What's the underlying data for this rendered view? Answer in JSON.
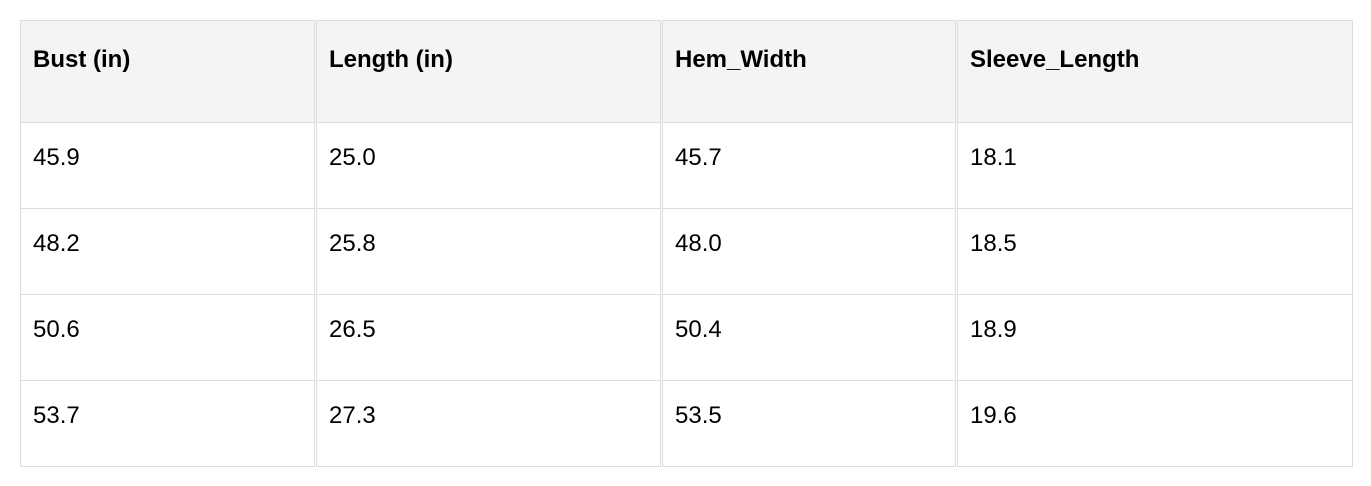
{
  "table": {
    "headers": [
      "Bust (in)",
      "Length (in)",
      "Hem_Width",
      "Sleeve_Length"
    ],
    "rows": [
      [
        "45.9",
        "25.0",
        "45.7",
        "18.1"
      ],
      [
        "48.2",
        "25.8",
        "48.0",
        "18.5"
      ],
      [
        "50.6",
        "26.5",
        "50.4",
        "18.9"
      ],
      [
        "53.7",
        "27.3",
        "53.5",
        "19.6"
      ]
    ]
  }
}
